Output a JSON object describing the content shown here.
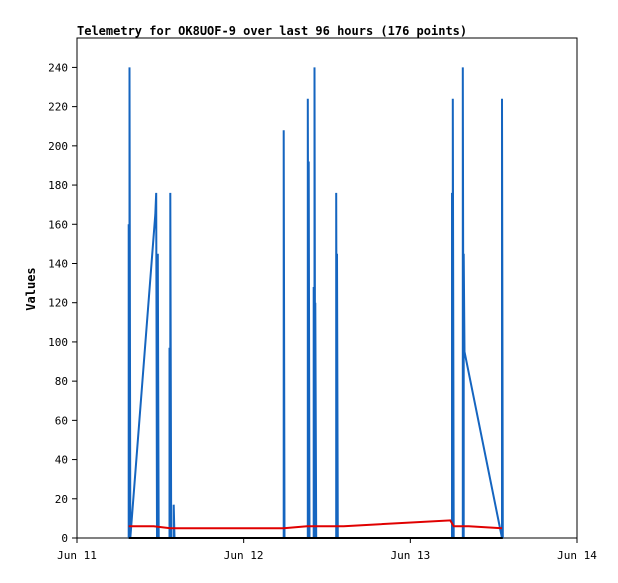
{
  "chart_data": {
    "type": "line",
    "title": "Telemetry for OK8UOF-9 over last 96 hours (176 points)",
    "xlabel": "",
    "ylabel": "Values",
    "x_ticks": [
      "Jun 11",
      "Jun 12",
      "Jun 13",
      "Jun 14"
    ],
    "x_domain_days": [
      0,
      3
    ],
    "y_ticks": [
      0,
      20,
      40,
      60,
      80,
      100,
      120,
      140,
      160,
      180,
      200,
      220,
      240
    ],
    "ylim": [
      0,
      255
    ],
    "grid": false,
    "series": [
      {
        "color": "#1565c0",
        "points": [
          [
            0.31,
            0
          ],
          [
            0.31,
            160
          ],
          [
            0.315,
            0
          ],
          [
            0.315,
            240
          ],
          [
            0.32,
            0
          ],
          [
            0.47,
            165
          ],
          [
            0.475,
            176
          ],
          [
            0.48,
            0
          ],
          [
            0.48,
            90
          ],
          [
            0.485,
            0
          ],
          [
            0.485,
            145
          ],
          [
            0.49,
            0
          ],
          [
            0.555,
            0
          ],
          [
            0.555,
            97
          ],
          [
            0.56,
            0
          ],
          [
            0.56,
            176
          ],
          [
            0.565,
            0
          ],
          [
            0.58,
            0
          ],
          [
            0.58,
            17
          ],
          [
            0.585,
            0
          ],
          [
            1.24,
            0
          ],
          [
            1.24,
            208
          ],
          [
            1.245,
            0
          ],
          [
            1.385,
            0
          ],
          [
            1.385,
            224
          ],
          [
            1.39,
            0
          ],
          [
            1.39,
            192
          ],
          [
            1.395,
            0
          ],
          [
            1.42,
            0
          ],
          [
            1.42,
            128
          ],
          [
            1.425,
            0
          ],
          [
            1.425,
            240
          ],
          [
            1.43,
            0
          ],
          [
            1.43,
            120
          ],
          [
            1.435,
            0
          ],
          [
            1.555,
            0
          ],
          [
            1.555,
            176
          ],
          [
            1.56,
            0
          ],
          [
            1.56,
            145
          ],
          [
            1.565,
            0
          ],
          [
            2.25,
            0
          ],
          [
            2.25,
            176
          ],
          [
            2.255,
            0
          ],
          [
            2.255,
            224
          ],
          [
            2.26,
            0
          ],
          [
            2.315,
            0
          ],
          [
            2.315,
            240
          ],
          [
            2.32,
            0
          ],
          [
            2.32,
            145
          ],
          [
            2.325,
            95
          ],
          [
            2.55,
            0
          ],
          [
            2.55,
            224
          ],
          [
            2.555,
            0
          ]
        ]
      },
      {
        "color": "#e00000",
        "points": [
          [
            0.31,
            6
          ],
          [
            0.46,
            6
          ],
          [
            0.56,
            5
          ],
          [
            1.24,
            5
          ],
          [
            1.38,
            6
          ],
          [
            1.6,
            6
          ],
          [
            2.24,
            9
          ],
          [
            2.26,
            6
          ],
          [
            2.35,
            6
          ],
          [
            2.55,
            5
          ]
        ]
      },
      {
        "color": "#000000",
        "points": [
          [
            0.31,
            0
          ],
          [
            2.555,
            0
          ]
        ]
      }
    ]
  }
}
